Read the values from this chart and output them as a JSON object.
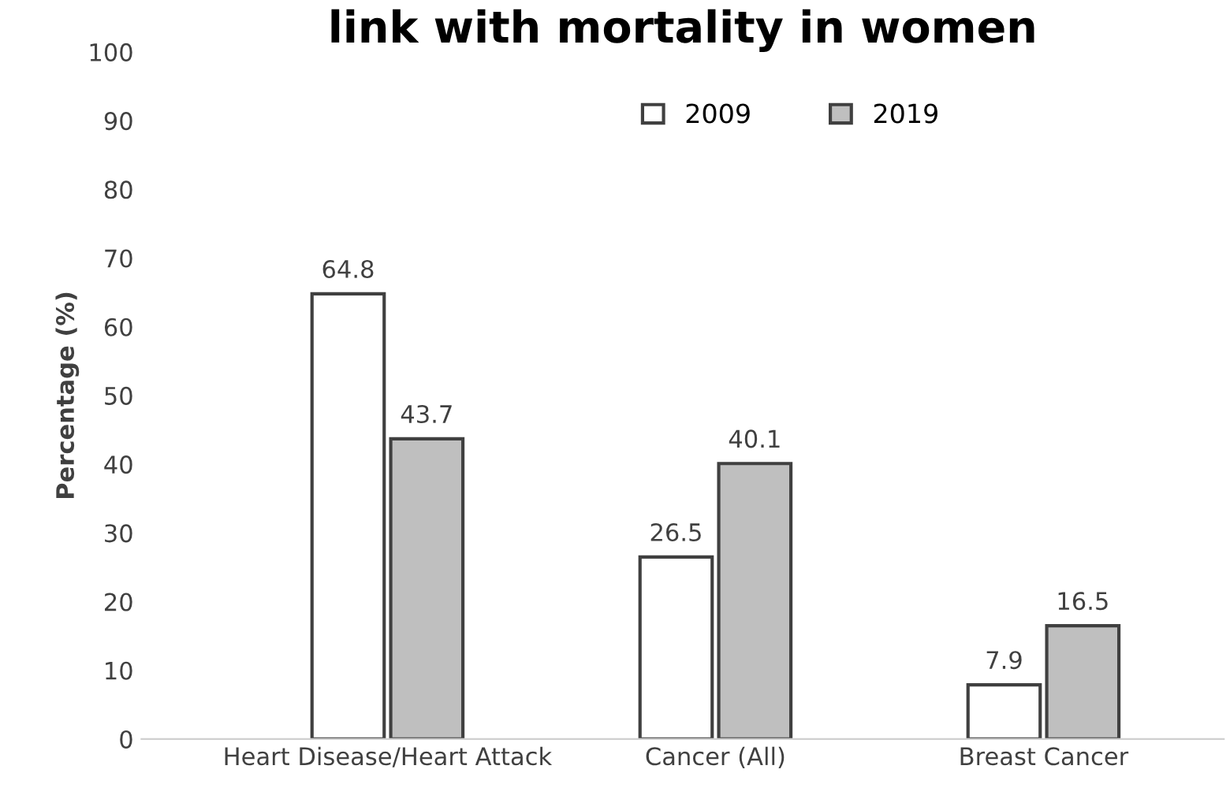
{
  "chart_data": {
    "type": "bar",
    "title": "link with mortality in women",
    "ylabel": "Percentage (%)",
    "categories": [
      "Heart Disease/Heart Attack",
      "Cancer (All)",
      "Breast Cancer"
    ],
    "series": [
      {
        "name": "2009",
        "color": "#ffffff",
        "values": [
          64.8,
          26.5,
          7.9
        ]
      },
      {
        "name": "2019",
        "color": "#bfbfbf",
        "values": [
          43.7,
          40.1,
          16.5
        ]
      }
    ],
    "ylim": [
      0,
      100
    ],
    "yticks": [
      0,
      10,
      20,
      30,
      40,
      50,
      60,
      70,
      80,
      90,
      100
    ],
    "grid": false,
    "legend": "top",
    "data_labels": true
  }
}
